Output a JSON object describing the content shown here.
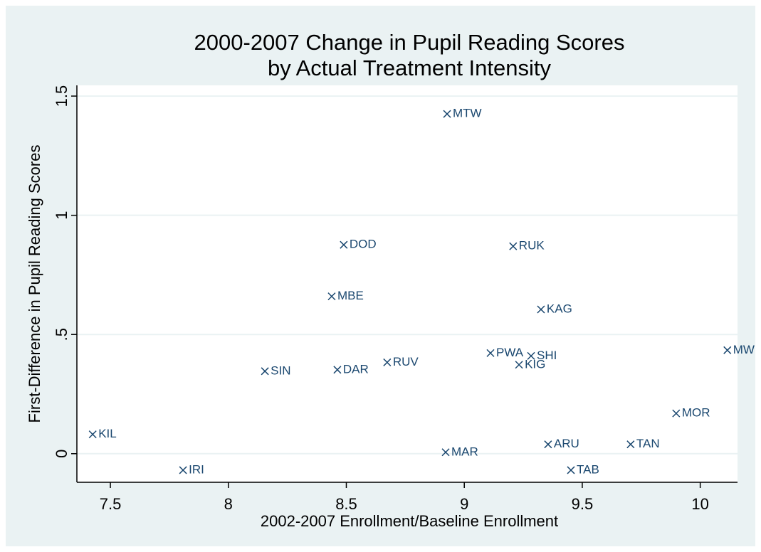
{
  "chart_data": {
    "type": "scatter",
    "title": [
      "2000-2007 Change in Pupil Reading Scores",
      "by Actual Treatment Intensity"
    ],
    "x_label": "2002-2007 Enrollment/Baseline Enrollment",
    "y_label": "First-Difference in Pupil Reading Scores",
    "color": "#1a476f",
    "grid": true,
    "xlim": [
      7.358,
      10.158
    ],
    "ylim": [
      -0.12,
      1.545
    ],
    "xticks": [
      7.5,
      8,
      8.5,
      9,
      9.5,
      10
    ],
    "yticks": [
      0,
      {
        "value": 0.5,
        "label": ".5"
      },
      1,
      1.5
    ],
    "point_labels": [
      "MTW",
      "DOD",
      "RUK",
      "MBE",
      "KAG",
      "PWA",
      "SHI",
      "KIG",
      "MW",
      "SIN",
      "DAR",
      "RUV",
      "MOR",
      "KIL",
      "ARU",
      "TAN",
      "MAR",
      "IRI",
      "TAB"
    ],
    "x": [
      8.927,
      8.489,
      9.207,
      8.438,
      9.325,
      9.111,
      9.283,
      9.232,
      10.115,
      8.155,
      8.462,
      8.673,
      9.898,
      7.425,
      9.355,
      9.705,
      8.921,
      7.808,
      9.452
    ],
    "values": [
      1.425,
      0.876,
      0.87,
      0.66,
      0.605,
      0.422,
      0.41,
      0.373,
      0.434,
      0.346,
      0.352,
      0.383,
      0.169,
      0.081,
      0.039,
      0.039,
      0.006,
      -0.069,
      -0.069
    ]
  }
}
